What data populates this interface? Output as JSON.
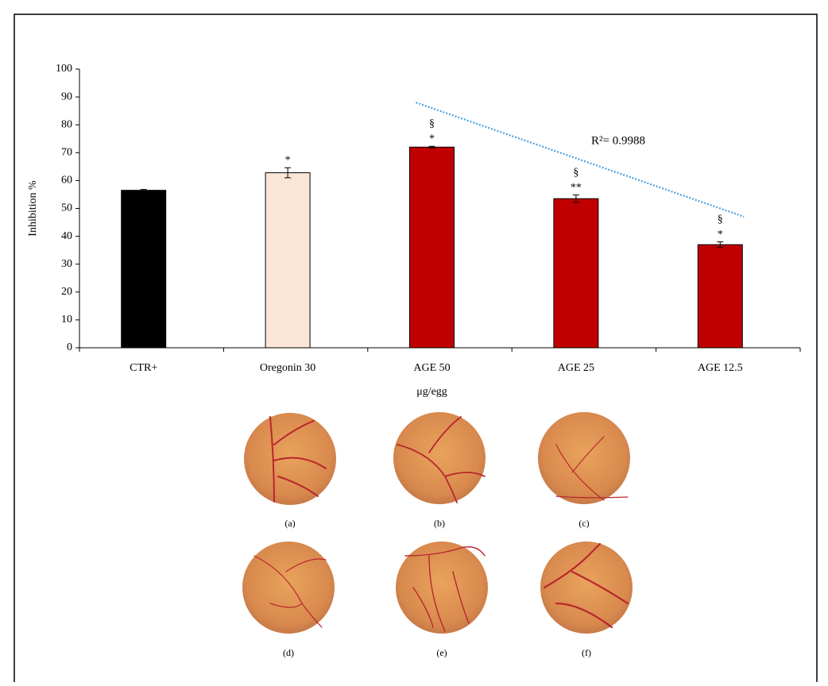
{
  "chart_data": {
    "type": "bar",
    "y_label": "Inhibition %",
    "x_label": "μg/egg",
    "categories": [
      "CTR+",
      "Oregonin 30",
      "AGE 50",
      "AGE 25",
      "AGE 12.5"
    ],
    "values": [
      56.5,
      62.8,
      72,
      53.5,
      37
    ],
    "errors": [
      0.3,
      1.8,
      0.3,
      1.3,
      1
    ],
    "colors": [
      "#000000",
      "#fbe5d6",
      "#c00000",
      "#c00000",
      "#c00000"
    ],
    "markers": [
      null,
      "*",
      "*",
      "**",
      "*"
    ],
    "section_markers": [
      null,
      null,
      "§",
      "§",
      "§"
    ],
    "trendline": {
      "categories": [
        2,
        3,
        4
      ],
      "values": [
        86,
        68,
        50
      ],
      "color": "#4a9fe0",
      "label": "R²= 0.9988"
    },
    "ylim": [
      0,
      100
    ],
    "yticks": [
      0,
      10,
      20,
      30,
      40,
      50,
      60,
      70,
      80,
      90,
      100
    ]
  },
  "figure_panels": [
    "(a)",
    "(b)",
    "(c)",
    "(d)",
    "(e)",
    "(f)"
  ]
}
